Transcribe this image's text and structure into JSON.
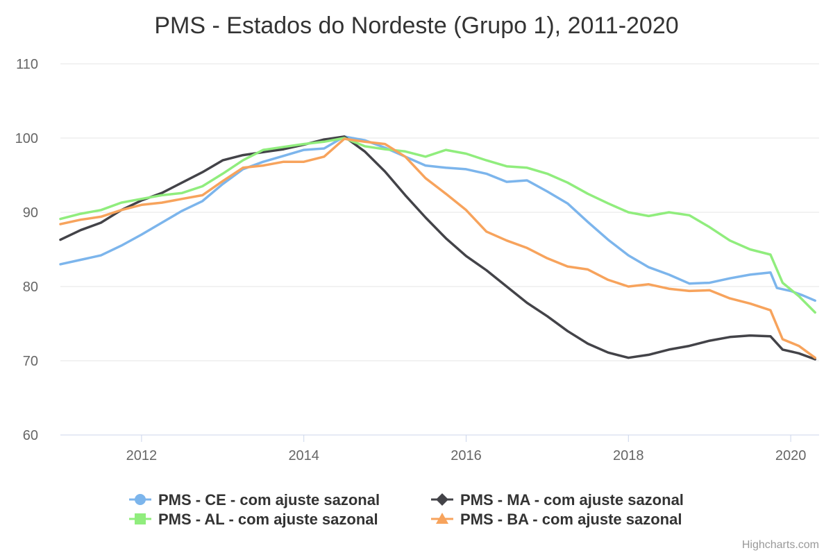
{
  "chart_data": {
    "type": "line",
    "title": "PMS - Estados do Nordeste (Grupo 1), 2011-2020",
    "xlabel": "",
    "ylabel": "",
    "x_ticks": [
      "2012",
      "2014",
      "2016",
      "2018",
      "2020"
    ],
    "y_ticks": [
      "60",
      "70",
      "80",
      "90",
      "100",
      "110"
    ],
    "xlim": [
      2011.0,
      2020.35
    ],
    "ylim": [
      60,
      110
    ],
    "grid": true,
    "legend_position": "bottom",
    "series": [
      {
        "name": "PMS - CE - com ajuste sazonal",
        "color": "#7cb5ec",
        "marker": "circle",
        "points": [
          [
            2011.0,
            83.0
          ],
          [
            2011.25,
            83.6
          ],
          [
            2011.5,
            84.2
          ],
          [
            2011.75,
            85.5
          ],
          [
            2012.0,
            87.0
          ],
          [
            2012.25,
            88.6
          ],
          [
            2012.5,
            90.2
          ],
          [
            2012.75,
            91.5
          ],
          [
            2013.0,
            93.8
          ],
          [
            2013.25,
            95.8
          ],
          [
            2013.5,
            96.8
          ],
          [
            2013.75,
            97.6
          ],
          [
            2014.0,
            98.4
          ],
          [
            2014.25,
            98.6
          ],
          [
            2014.5,
            100.2
          ],
          [
            2014.75,
            99.7
          ],
          [
            2015.0,
            98.7
          ],
          [
            2015.25,
            97.5
          ],
          [
            2015.5,
            96.3
          ],
          [
            2015.75,
            96.0
          ],
          [
            2016.0,
            95.8
          ],
          [
            2016.25,
            95.2
          ],
          [
            2016.5,
            94.1
          ],
          [
            2016.75,
            94.3
          ],
          [
            2017.0,
            92.8
          ],
          [
            2017.25,
            91.2
          ],
          [
            2017.5,
            88.7
          ],
          [
            2017.75,
            86.3
          ],
          [
            2018.0,
            84.2
          ],
          [
            2018.25,
            82.6
          ],
          [
            2018.5,
            81.6
          ],
          [
            2018.75,
            80.4
          ],
          [
            2019.0,
            80.5
          ],
          [
            2019.25,
            81.1
          ],
          [
            2019.5,
            81.6
          ],
          [
            2019.75,
            81.9
          ],
          [
            2019.83,
            79.8
          ],
          [
            2020.0,
            79.4
          ],
          [
            2020.15,
            78.8
          ],
          [
            2020.3,
            78.1
          ]
        ]
      },
      {
        "name": "PMS - MA - com ajuste sazonal",
        "color": "#434348",
        "marker": "diamond",
        "points": [
          [
            2011.0,
            86.3
          ],
          [
            2011.25,
            87.6
          ],
          [
            2011.5,
            88.6
          ],
          [
            2011.75,
            90.3
          ],
          [
            2012.0,
            91.6
          ],
          [
            2012.25,
            92.6
          ],
          [
            2012.5,
            94.0
          ],
          [
            2012.75,
            95.4
          ],
          [
            2013.0,
            97.0
          ],
          [
            2013.25,
            97.7
          ],
          [
            2013.5,
            98.1
          ],
          [
            2013.75,
            98.5
          ],
          [
            2014.0,
            99.1
          ],
          [
            2014.25,
            99.8
          ],
          [
            2014.5,
            100.2
          ],
          [
            2014.75,
            98.2
          ],
          [
            2015.0,
            95.5
          ],
          [
            2015.25,
            92.3
          ],
          [
            2015.5,
            89.3
          ],
          [
            2015.75,
            86.5
          ],
          [
            2016.0,
            84.1
          ],
          [
            2016.25,
            82.2
          ],
          [
            2016.5,
            80.0
          ],
          [
            2016.75,
            77.8
          ],
          [
            2017.0,
            76.0
          ],
          [
            2017.25,
            74.0
          ],
          [
            2017.5,
            72.3
          ],
          [
            2017.75,
            71.1
          ],
          [
            2018.0,
            70.4
          ],
          [
            2018.25,
            70.8
          ],
          [
            2018.5,
            71.5
          ],
          [
            2018.75,
            72.0
          ],
          [
            2019.0,
            72.7
          ],
          [
            2019.25,
            73.2
          ],
          [
            2019.5,
            73.4
          ],
          [
            2019.75,
            73.3
          ],
          [
            2019.9,
            71.5
          ],
          [
            2020.1,
            71.0
          ],
          [
            2020.3,
            70.2
          ]
        ]
      },
      {
        "name": "PMS - AL - com ajuste sazonal",
        "color": "#90ed7d",
        "marker": "square",
        "points": [
          [
            2011.0,
            89.1
          ],
          [
            2011.25,
            89.8
          ],
          [
            2011.5,
            90.3
          ],
          [
            2011.75,
            91.3
          ],
          [
            2012.0,
            91.8
          ],
          [
            2012.25,
            92.3
          ],
          [
            2012.5,
            92.6
          ],
          [
            2012.75,
            93.5
          ],
          [
            2013.0,
            95.2
          ],
          [
            2013.25,
            97.0
          ],
          [
            2013.5,
            98.4
          ],
          [
            2013.75,
            98.8
          ],
          [
            2014.0,
            99.2
          ],
          [
            2014.25,
            99.5
          ],
          [
            2014.5,
            100.0
          ],
          [
            2014.75,
            98.9
          ],
          [
            2015.0,
            98.5
          ],
          [
            2015.25,
            98.2
          ],
          [
            2015.5,
            97.5
          ],
          [
            2015.75,
            98.4
          ],
          [
            2016.0,
            97.9
          ],
          [
            2016.25,
            97.0
          ],
          [
            2016.5,
            96.2
          ],
          [
            2016.75,
            96.0
          ],
          [
            2017.0,
            95.2
          ],
          [
            2017.25,
            94.0
          ],
          [
            2017.5,
            92.5
          ],
          [
            2017.75,
            91.2
          ],
          [
            2018.0,
            90.0
          ],
          [
            2018.25,
            89.5
          ],
          [
            2018.5,
            90.0
          ],
          [
            2018.75,
            89.6
          ],
          [
            2019.0,
            88.0
          ],
          [
            2019.25,
            86.2
          ],
          [
            2019.5,
            85.0
          ],
          [
            2019.75,
            84.3
          ],
          [
            2019.9,
            80.5
          ],
          [
            2020.1,
            78.7
          ],
          [
            2020.3,
            76.5
          ]
        ]
      },
      {
        "name": "PMS - BA - com ajuste sazonal",
        "color": "#f7a35c",
        "marker": "triangle",
        "points": [
          [
            2011.0,
            88.4
          ],
          [
            2011.25,
            89.0
          ],
          [
            2011.5,
            89.4
          ],
          [
            2011.75,
            90.3
          ],
          [
            2012.0,
            91.0
          ],
          [
            2012.25,
            91.3
          ],
          [
            2012.5,
            91.8
          ],
          [
            2012.75,
            92.3
          ],
          [
            2013.0,
            94.2
          ],
          [
            2013.25,
            96.0
          ],
          [
            2013.5,
            96.3
          ],
          [
            2013.75,
            96.8
          ],
          [
            2014.0,
            96.8
          ],
          [
            2014.25,
            97.5
          ],
          [
            2014.5,
            99.9
          ],
          [
            2014.75,
            99.5
          ],
          [
            2015.0,
            99.2
          ],
          [
            2015.25,
            97.5
          ],
          [
            2015.5,
            94.6
          ],
          [
            2015.75,
            92.5
          ],
          [
            2016.0,
            90.3
          ],
          [
            2016.25,
            87.4
          ],
          [
            2016.5,
            86.2
          ],
          [
            2016.75,
            85.2
          ],
          [
            2017.0,
            83.8
          ],
          [
            2017.25,
            82.7
          ],
          [
            2017.5,
            82.3
          ],
          [
            2017.75,
            80.9
          ],
          [
            2018.0,
            80.0
          ],
          [
            2018.25,
            80.3
          ],
          [
            2018.5,
            79.7
          ],
          [
            2018.75,
            79.4
          ],
          [
            2019.0,
            79.5
          ],
          [
            2019.25,
            78.4
          ],
          [
            2019.5,
            77.7
          ],
          [
            2019.75,
            76.8
          ],
          [
            2019.9,
            72.9
          ],
          [
            2020.1,
            72.0
          ],
          [
            2020.3,
            70.4
          ]
        ]
      }
    ],
    "credits": "Highcharts.com"
  }
}
